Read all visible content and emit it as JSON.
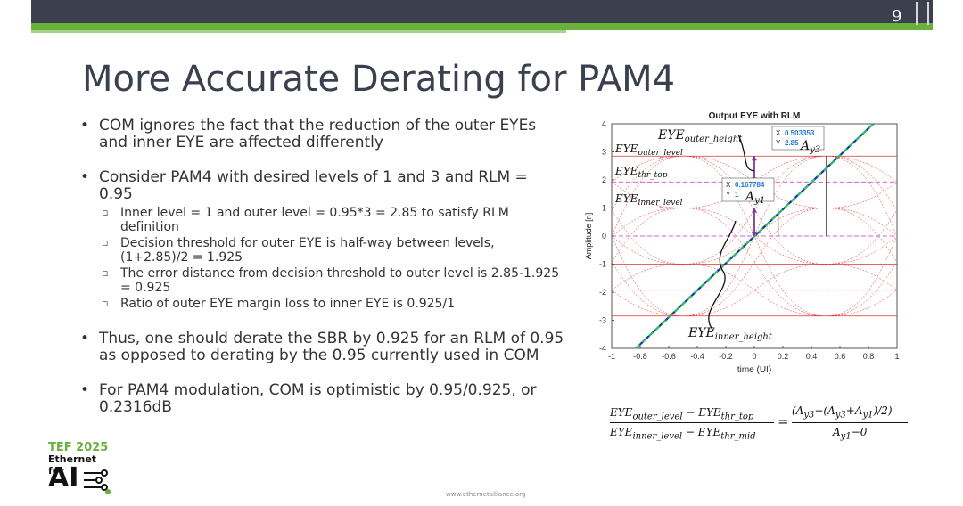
{
  "slide_number": "9",
  "title": "More Accurate Derating for PAM4",
  "bullets": [
    {
      "text": "COM ignores the fact that the reduction of the outer EYEs and inner EYE are affected differently",
      "subs": []
    },
    {
      "text": "Consider PAM4 with desired levels of 1 and 3 and RLM = 0.95",
      "subs": [
        "Inner level = 1 and outer level = 0.95*3 = 2.85 to satisfy RLM definition",
        "Decision threshold for outer EYE is half-way between levels, (1+2.85)/2 = 1.925",
        "The error distance from decision threshold to outer level is 2.85-1.925 = 0.925",
        "Ratio of outer EYE margin loss to inner EYE is 0.925/1"
      ]
    },
    {
      "text": "Thus, one should derate the SBR by 0.925 for an RLM of 0.95 as opposed to derating by the 0.95 currently used in COM",
      "subs": []
    },
    {
      "text": "For PAM4 modulation, COM is optimistic by 0.95/0.925, or 0.2316dB",
      "subs": []
    }
  ],
  "footer": "www.ethernetalliance.org",
  "logo": {
    "line1": "TEF 2025",
    "line2": "Ethernet for",
    "line3": "AI"
  },
  "chart_data": {
    "type": "line",
    "title": "Output EYE with RLM",
    "xlabel": "time (UI)",
    "ylabel": "Amplitude [n]",
    "xlim": [
      -1,
      1
    ],
    "ylim": [
      -4,
      4
    ],
    "xticks": [
      "-1",
      "-0.8",
      "-0.6",
      "-0.4",
      "-0.2",
      "0",
      "0.2",
      "0.4",
      "0.6",
      "0.8",
      "1"
    ],
    "yticks": [
      "-4",
      "-3",
      "-2",
      "-1",
      "0",
      "1",
      "2",
      "3",
      "4"
    ],
    "levels_solid": [
      2.85,
      1,
      -1,
      -2.85
    ],
    "thresholds_dashed": [
      1.925,
      0,
      -1.925
    ],
    "series": [
      {
        "color": "#1f2fbf",
        "x": [
          -0.83,
          1
        ],
        "y": [
          -4,
          4.8
        ]
      },
      {
        "color": "#22cc44",
        "x": [
          -0.83,
          1
        ],
        "y": [
          -4,
          4.8
        ]
      }
    ],
    "datatips": [
      {
        "x_label": "X",
        "x_value": "0.503353",
        "y_label": "Y",
        "y_value": "2.85"
      },
      {
        "x_label": "X",
        "x_value": "0.167784",
        "y_label": "Y",
        "y_value": "1"
      }
    ],
    "annotations": {
      "outer_height": "EYE",
      "outer_height_sub": "outer_height",
      "outer_level": "EYE",
      "outer_level_sub": "outer_level",
      "thr_top": "EYE",
      "thr_top_sub": "thr_top",
      "inner_level": "EYE",
      "inner_level_sub": "inner_level",
      "inner_height": "EYE",
      "inner_height_sub": "inner_height",
      "ay3": "A",
      "ay3_sub": "y3",
      "ay1": "A",
      "ay1_sub": "y1"
    }
  },
  "formula": {
    "num_left": "EYE",
    "num_left_sub": "outer_level",
    "num_mid": " − EYE",
    "num_right_sub": "thr_top",
    "den_left": "EYE",
    "den_left_sub": "inner_level",
    "den_mid": " − EYE",
    "den_right_sub": "thr_mid",
    "equals": "=",
    "rhs_num": "(A",
    "rhs_num_s1": "y3",
    "rhs_num_2": "−(A",
    "rhs_num_s2": "y3",
    "rhs_num_3": "+A",
    "rhs_num_s3": "y1",
    "rhs_num_4": ")/2)",
    "rhs_den": "A",
    "rhs_den_sub": "y1",
    "rhs_den_2": "−0"
  }
}
